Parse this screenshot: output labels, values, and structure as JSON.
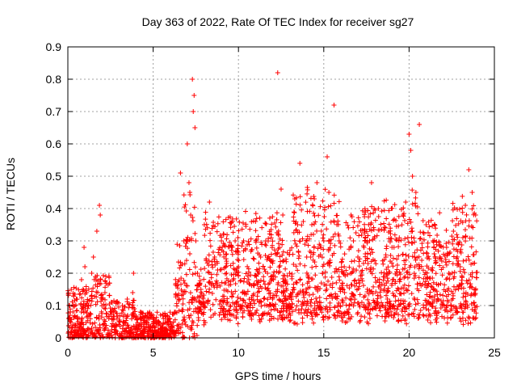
{
  "chart_data": {
    "type": "scatter",
    "title": "Day 363 of 2022, Rate Of TEC Index for receiver sg27",
    "xlabel": "GPS time / hours",
    "ylabel": "ROTI / TECUs",
    "xlim": [
      0,
      25
    ],
    "ylim": [
      0,
      0.9
    ],
    "x_ticks": [
      "0",
      "5",
      "10",
      "15",
      "20",
      "25"
    ],
    "y_ticks": [
      "0",
      "0.1",
      "0.2",
      "0.3",
      "0.4",
      "0.5",
      "0.6",
      "0.7",
      "0.8",
      "0.9"
    ],
    "grid": true,
    "marker": "+",
    "color": "#ff0000",
    "envelope_description": "Dense cluster of ROTI samples; typical values below",
    "points_x": [
      0.05,
      0.1,
      0.2,
      0.3,
      0.5,
      0.6,
      0.8,
      0.95,
      1.0,
      1.1,
      1.2,
      1.4,
      1.5,
      1.7,
      1.85,
      1.9,
      2.0,
      2.2,
      2.4,
      2.6,
      2.8,
      3.0,
      3.2,
      3.5,
      3.8,
      3.85,
      4.0,
      4.3,
      4.6,
      5.0,
      5.3,
      5.6,
      6.0,
      6.3,
      6.5,
      6.6,
      6.8,
      7.0,
      7.1,
      7.15,
      7.2,
      7.3,
      7.35,
      7.4,
      7.45,
      7.5,
      7.6,
      7.8,
      8.0,
      8.3,
      8.6,
      9.0,
      9.3,
      9.6,
      10.0,
      10.3,
      10.6,
      11.0,
      11.3,
      11.6,
      12.0,
      12.3,
      12.5,
      12.6,
      13.0,
      13.3,
      13.6,
      13.8,
      14.0,
      14.3,
      14.6,
      15.0,
      15.2,
      15.3,
      15.6,
      15.9,
      16.2,
      16.6,
      17.0,
      17.4,
      17.8,
      18.2,
      18.6,
      19.0,
      19.4,
      19.8,
      20.0,
      20.1,
      20.2,
      20.4,
      20.6,
      21.0,
      21.4,
      21.8,
      22.2,
      22.6,
      23.0,
      23.3,
      23.5,
      23.7,
      23.9
    ],
    "points_y": [
      0.06,
      0.1,
      0.15,
      0.08,
      0.12,
      0.05,
      0.18,
      0.28,
      0.22,
      0.14,
      0.1,
      0.2,
      0.25,
      0.33,
      0.41,
      0.38,
      0.12,
      0.09,
      0.06,
      0.11,
      0.08,
      0.05,
      0.1,
      0.07,
      0.14,
      0.2,
      0.04,
      0.06,
      0.05,
      0.05,
      0.04,
      0.06,
      0.05,
      0.08,
      0.12,
      0.51,
      0.3,
      0.6,
      0.48,
      0.45,
      0.38,
      0.8,
      0.7,
      0.75,
      0.65,
      0.3,
      0.2,
      0.15,
      0.35,
      0.42,
      0.25,
      0.3,
      0.2,
      0.28,
      0.22,
      0.3,
      0.18,
      0.36,
      0.25,
      0.3,
      0.12,
      0.82,
      0.46,
      0.38,
      0.2,
      0.43,
      0.54,
      0.36,
      0.25,
      0.35,
      0.48,
      0.3,
      0.56,
      0.45,
      0.72,
      0.3,
      0.22,
      0.38,
      0.25,
      0.3,
      0.48,
      0.4,
      0.34,
      0.28,
      0.3,
      0.42,
      0.63,
      0.58,
      0.5,
      0.45,
      0.66,
      0.35,
      0.3,
      0.25,
      0.28,
      0.33,
      0.22,
      0.41,
      0.52,
      0.45,
      0.38
    ]
  }
}
